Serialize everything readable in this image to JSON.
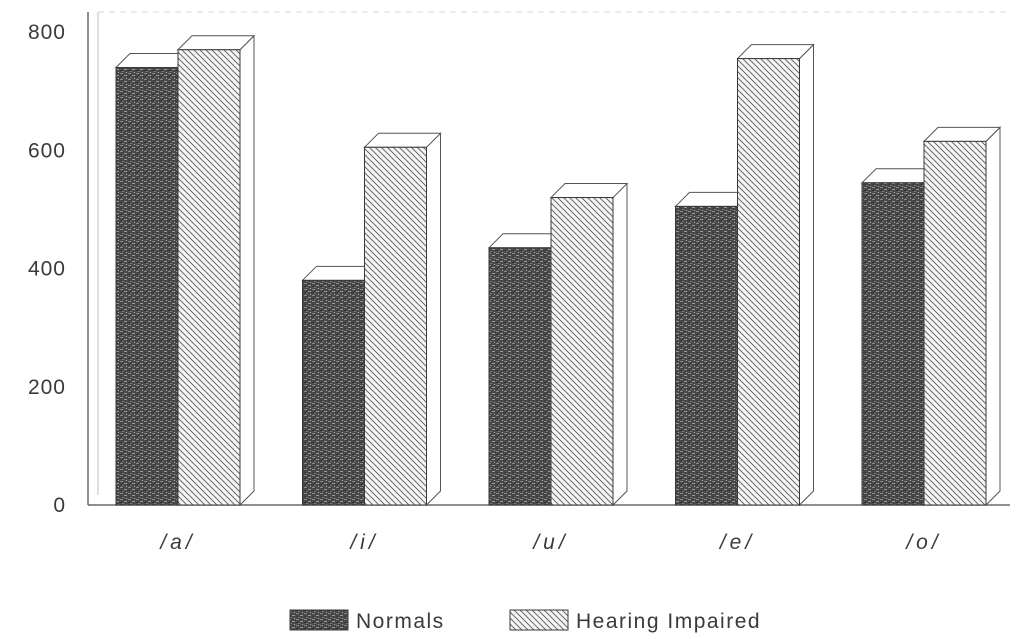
{
  "chart_data": {
    "type": "bar",
    "categories": [
      "/a/",
      "/i/",
      "/u/",
      "/e/",
      "/o/"
    ],
    "series": [
      {
        "name": "Normals",
        "values": [
          740,
          380,
          435,
          505,
          545
        ],
        "color": "#4a4a4a",
        "pattern": "dense-noise"
      },
      {
        "name": "Hearing Impaired",
        "values": [
          770,
          605,
          520,
          755,
          615
        ],
        "color": "#f4f4f4",
        "pattern": "diagonal-hatch"
      }
    ],
    "y_ticks": [
      "0",
      "200",
      "400",
      "600",
      "800"
    ],
    "ylim": [
      0,
      800
    ],
    "title": "",
    "xlabel": "",
    "ylabel": "",
    "grid": false,
    "style": "3d",
    "legend_position": "bottom-center"
  }
}
